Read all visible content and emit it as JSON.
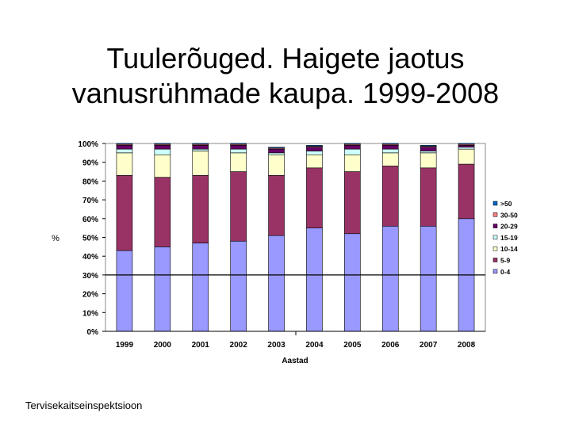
{
  "slide": {
    "title_line1": "Tuulerõuged. Haigete jaotus",
    "title_line2": "vanusrühmade kaupa. 1999-2008",
    "footer": "Tervisekaitseinspektsioon"
  },
  "chart_data": {
    "type": "bar",
    "stacked": true,
    "percent": true,
    "xlabel": "Aastad",
    "ylabel": "%",
    "ylim": [
      0,
      100
    ],
    "yticks": [
      "0%",
      "10%",
      "20%",
      "30%",
      "40%",
      "50%",
      "60%",
      "70%",
      "80%",
      "90%",
      "100%"
    ],
    "grid": false,
    "reference_line": 30,
    "legend_position": "right",
    "categories": [
      "1999",
      "2000",
      "2001",
      "2002",
      "2003",
      "2004",
      "2005",
      "2006",
      "2007",
      "2008"
    ],
    "series": [
      {
        "name": "0-4",
        "color": "#9999ff",
        "values": [
          43,
          45,
          47,
          48,
          51,
          55,
          52,
          56,
          56,
          60
        ]
      },
      {
        "name": "5-9",
        "color": "#993366",
        "values": [
          40,
          37,
          36,
          37,
          32,
          32,
          33,
          32,
          31,
          29
        ]
      },
      {
        "name": "10-14",
        "color": "#ffffcc",
        "values": [
          12,
          12,
          13,
          10,
          11,
          7,
          9,
          7,
          8,
          8
        ]
      },
      {
        "name": "15-19",
        "color": "#ccffff",
        "values": [
          2,
          3,
          1,
          2,
          1,
          2,
          3,
          2,
          1,
          1
        ]
      },
      {
        "name": "20-29",
        "color": "#660066",
        "values": [
          2,
          2,
          2,
          2,
          2,
          2,
          2,
          2,
          2,
          1
        ]
      },
      {
        "name": "30-50",
        "color": "#ff8080",
        "values": [
          0.5,
          0.5,
          0.5,
          0.5,
          0.5,
          0.5,
          0.5,
          0.5,
          0.5,
          0.5
        ]
      },
      {
        "name": ">50",
        "color": "#0066cc",
        "values": [
          0.5,
          0.5,
          0.5,
          0.5,
          0.5,
          0.5,
          0.5,
          0.5,
          0.5,
          0.5
        ]
      }
    ],
    "legend_order": [
      ">50",
      "30-50",
      "20-29",
      "15-19",
      "10-14",
      "5-9",
      "0-4"
    ]
  }
}
